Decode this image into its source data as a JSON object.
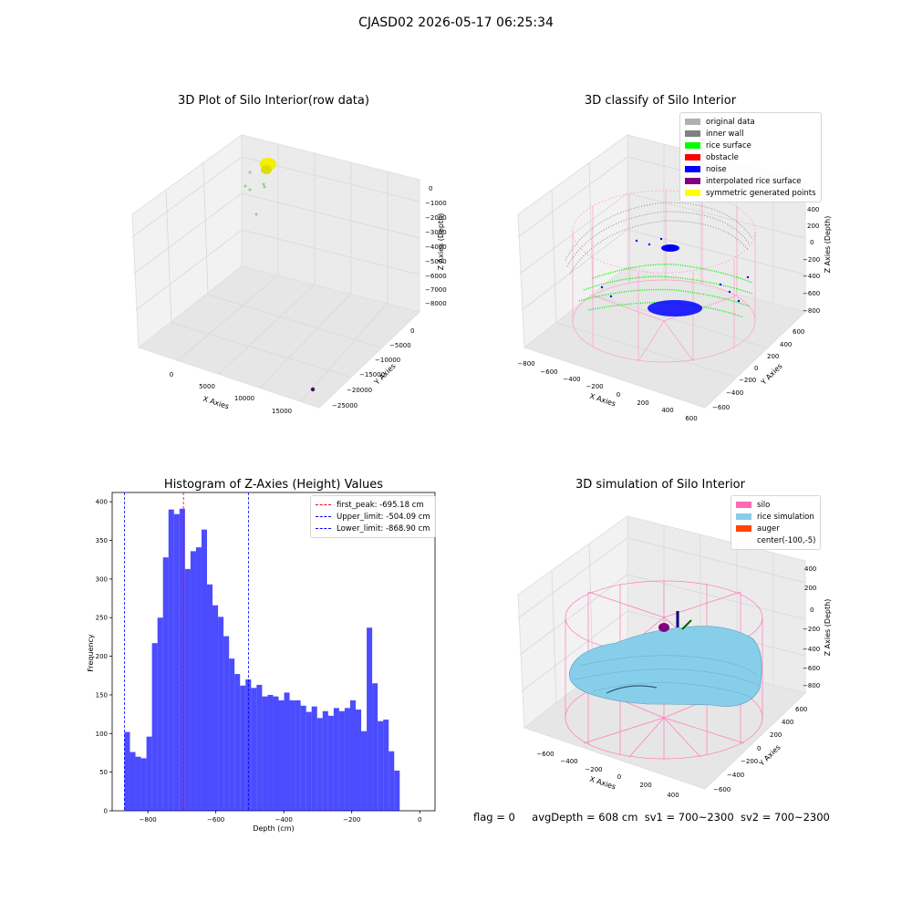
{
  "figure": {
    "suptitle": "CJASD02 2026-05-17 06:25:34"
  },
  "panel_raw": {
    "title": "3D Plot of Silo Interior(row data)",
    "xlabel": "X Axies",
    "ylabel": "Y Axies",
    "zlabel": "Z Axies (Depth)",
    "xticks": [
      "0",
      "5000",
      "10000",
      "15000"
    ],
    "yticks": [
      "0",
      "−5000",
      "−10000",
      "−15000",
      "−20000",
      "−25000"
    ],
    "zticks": [
      "0",
      "−1000",
      "−2000",
      "−3000",
      "−4000",
      "−5000",
      "−6000",
      "−7000",
      "−8000"
    ]
  },
  "panel_classify": {
    "title": "3D classify of Silo Interior",
    "xlabel": "X Axies",
    "ylabel": "Y Axies",
    "zlabel": "Z Axies (Depth)",
    "xticks": [
      "−800",
      "−600",
      "−400",
      "−200",
      "0",
      "200",
      "400",
      "600"
    ],
    "yticks": [
      "600",
      "400",
      "200",
      "0",
      "−200",
      "−400",
      "−600"
    ],
    "zticks": [
      "400",
      "200",
      "0",
      "−200",
      "−400",
      "−600",
      "−800"
    ],
    "legend": [
      {
        "label": "original data",
        "color": "#b0b0b0"
      },
      {
        "label": "inner wall",
        "color": "#808080"
      },
      {
        "label": "rice surface",
        "color": "#00ff00"
      },
      {
        "label": "obstacle",
        "color": "#ff0000"
      },
      {
        "label": "noise",
        "color": "#0000ff"
      },
      {
        "label": "interpolated rice surface",
        "color": "#800080"
      },
      {
        "label": "symmetric generated points",
        "color": "#ffff00"
      }
    ]
  },
  "panel_sim": {
    "title": "3D simulation of Silo Interior",
    "xlabel": "X Axies",
    "ylabel": "Y Axies",
    "zlabel": "Z Axies (Depth)",
    "xticks": [
      "−600",
      "−400",
      "−200",
      "0",
      "200",
      "400"
    ],
    "yticks": [
      "600",
      "400",
      "200",
      "0",
      "−200",
      "−400",
      "−600"
    ],
    "zticks": [
      "400",
      "200",
      "0",
      "−200",
      "−400",
      "−600",
      "−800"
    ],
    "legend": [
      {
        "label": "silo",
        "color": "#ff69b4"
      },
      {
        "label": "rice simulation",
        "color": "#87ceeb"
      },
      {
        "label": "auger",
        "color": "#ff4500"
      },
      {
        "label": "center(-100,-5)",
        "color": ""
      }
    ]
  },
  "status": {
    "flag": "flag = 0",
    "avg_depth": "avgDepth = 608 cm",
    "sv1": "sv1 = 700~2300",
    "sv2": "sv2 = 700~2300"
  },
  "chart_data": {
    "type": "bar",
    "title": "Histogram of Z-Axies (Height) Values",
    "xlabel": "Depth (cm)",
    "ylabel": "Frequency",
    "xlim": [
      -905,
      45
    ],
    "ylim": [
      0,
      412
    ],
    "xticks": [
      -800,
      -600,
      -400,
      -200,
      0
    ],
    "yticks": [
      0,
      50,
      100,
      150,
      200,
      250,
      300,
      350,
      400
    ],
    "color": "#0000ff",
    "bins": {
      "start": -868.9,
      "width": 16.2
    },
    "values": [
      102,
      76,
      70,
      68,
      96,
      217,
      250,
      328,
      390,
      384,
      391,
      313,
      336,
      341,
      364,
      293,
      266,
      251,
      226,
      197,
      177,
      162,
      170,
      159,
      163,
      148,
      150,
      148,
      143,
      153,
      143,
      143,
      136,
      128,
      135,
      120,
      129,
      123,
      133,
      129,
      133,
      143,
      131,
      103,
      237,
      165,
      116,
      118,
      77,
      52
    ],
    "vlines": [
      {
        "name": "first_peak: -695.18 cm",
        "x": -695.18,
        "color": "#ff0000"
      },
      {
        "name": "Upper_limit: -504.09 cm",
        "x": -504.09,
        "color": "#0000ff"
      },
      {
        "name": "Lower_limit: -868.90 cm",
        "x": -868.9,
        "color": "#0000ff"
      }
    ]
  }
}
